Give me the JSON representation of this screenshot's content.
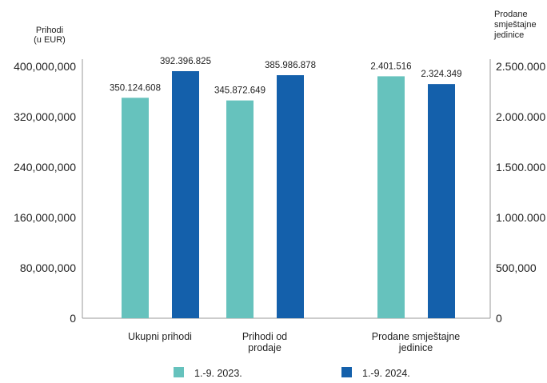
{
  "chart_data": {
    "type": "bar",
    "title": "",
    "left_axis_label": [
      "Prihodi",
      "(u EUR)"
    ],
    "right_axis_label": [
      "Prodane",
      "smještajne",
      "jedinice"
    ],
    "left_ticks": [
      "0",
      "80,000,000",
      "160,000,000",
      "240,000,000",
      "320,000,000",
      "400,000,000"
    ],
    "right_ticks": [
      "0",
      "500,000",
      "1.000.000",
      "1.500.000",
      "2.000.000",
      "2.500.000"
    ],
    "ylim_left": [
      0,
      400000000
    ],
    "ylim_right": [
      0,
      2500000
    ],
    "categories": [
      {
        "lines": [
          "Ukupni prihodi"
        ],
        "axis": "left"
      },
      {
        "lines": [
          "Prihodi od",
          "prodaje"
        ],
        "axis": "left"
      },
      {
        "lines": [
          "Prodane smještajne",
          "jedinice"
        ],
        "axis": "right"
      }
    ],
    "series": [
      {
        "name": "1.-9. 2023.",
        "color": "#66c2bd",
        "values": [
          350124608,
          345872649,
          2401516
        ],
        "labels": [
          "350.124.608",
          "345.872.649",
          "2.401.516"
        ]
      },
      {
        "name": "1.-9. 2024.",
        "color": "#1460ab",
        "values": [
          392396825,
          385986878,
          2324349
        ],
        "labels": [
          "392.396.825",
          "385.986.878",
          "2.324.349"
        ]
      }
    ],
    "grid": false,
    "legend_position": "bottom"
  }
}
